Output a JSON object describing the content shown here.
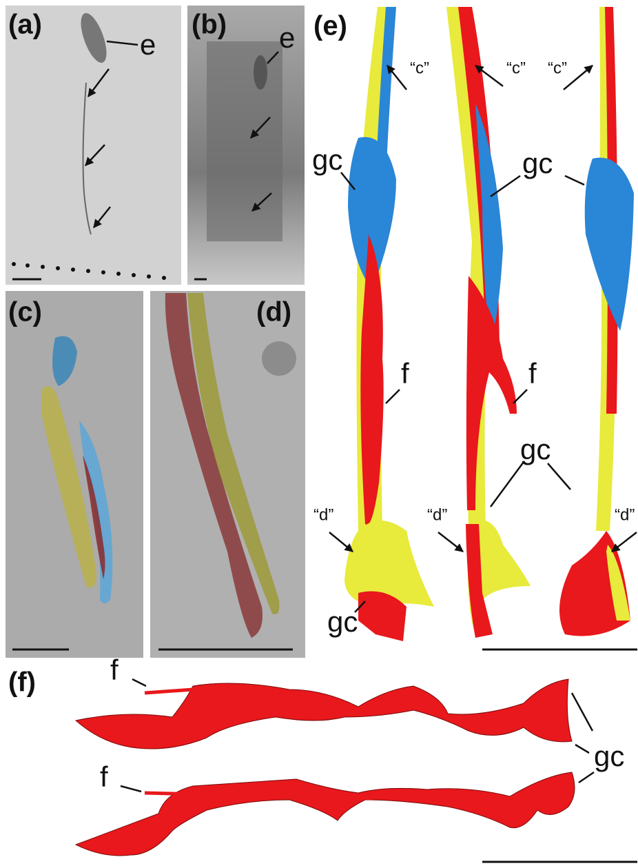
{
  "panels": {
    "a": {
      "label": "(a)",
      "callouts": [
        "e"
      ]
    },
    "b": {
      "label": "(b)",
      "callouts": [
        "e"
      ]
    },
    "c": {
      "label": "(c)"
    },
    "d": {
      "label": "(d)"
    },
    "e": {
      "label": "(e)",
      "callouts": [
        "“c”",
        "“c”",
        "“c”",
        "gc",
        "gc",
        "f",
        "f",
        "“d”",
        "“d”",
        "“d”",
        "gc",
        "gc"
      ]
    },
    "f": {
      "label": "(f)",
      "callouts": [
        "f",
        "f",
        "gc"
      ]
    }
  }
}
